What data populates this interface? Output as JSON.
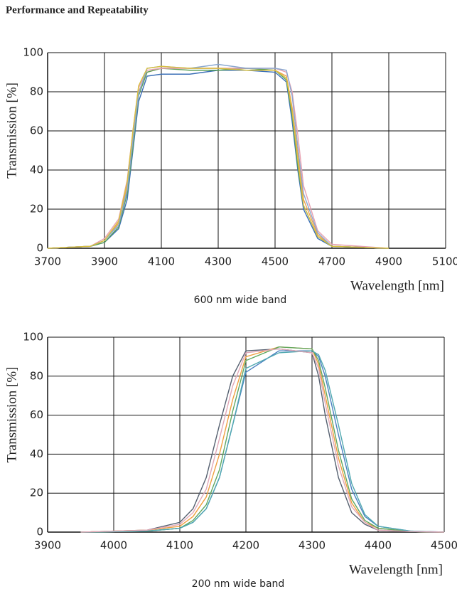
{
  "title": "Performance and Repeatability",
  "chart_data": [
    {
      "type": "line",
      "caption": "600 nm wide band",
      "xlabel": "Wavelength [nm]",
      "ylabel": "Transmission [%]",
      "xlim": [
        3700,
        5100
      ],
      "xticks": [
        3700,
        3900,
        4100,
        4300,
        4500,
        4700,
        4900,
        5100
      ],
      "ylim": [
        0,
        100
      ],
      "yticks": [
        0,
        20,
        40,
        60,
        80,
        100
      ],
      "grid": true,
      "x": [
        3700,
        3850,
        3900,
        3950,
        3980,
        4000,
        4020,
        4050,
        4100,
        4200,
        4300,
        4400,
        4500,
        4540,
        4560,
        4580,
        4600,
        4650,
        4700,
        4900
      ],
      "series": [
        {
          "color": "#3b6fb6",
          "values": [
            0,
            1,
            3,
            10,
            25,
            50,
            75,
            88,
            89,
            89,
            91,
            91,
            90,
            85,
            65,
            40,
            20,
            5,
            1,
            0
          ]
        },
        {
          "color": "#f0a050",
          "values": [
            0,
            1,
            4,
            13,
            32,
            58,
            80,
            90,
            92,
            92,
            92,
            92,
            91,
            88,
            72,
            48,
            25,
            7,
            1,
            0
          ]
        },
        {
          "color": "#5aa05a",
          "values": [
            0,
            1,
            3,
            11,
            28,
            52,
            78,
            90,
            92,
            91,
            91,
            92,
            91,
            86,
            68,
            42,
            22,
            6,
            1,
            0
          ]
        },
        {
          "color": "#e8a0b0",
          "values": [
            0,
            1,
            5,
            15,
            35,
            60,
            82,
            91,
            92,
            92,
            92,
            92,
            92,
            90,
            80,
            58,
            32,
            9,
            2,
            0
          ]
        },
        {
          "color": "#8aa8d0",
          "values": [
            0,
            1,
            4,
            12,
            30,
            55,
            79,
            92,
            93,
            92,
            94,
            92,
            92,
            91,
            78,
            52,
            28,
            8,
            1,
            0
          ]
        },
        {
          "color": "#d8c040",
          "values": [
            0,
            1,
            4,
            14,
            34,
            60,
            83,
            92,
            93,
            92,
            92,
            91,
            91,
            87,
            70,
            45,
            22,
            6,
            1,
            0
          ]
        }
      ]
    },
    {
      "type": "line",
      "caption": "200 nm wide band",
      "xlabel": "Wavelength [nm]",
      "ylabel": "Transmission [%]",
      "xlim": [
        3900,
        4500
      ],
      "xticks": [
        3900,
        4000,
        4100,
        4200,
        4300,
        4400,
        4500
      ],
      "ylim": [
        0,
        100
      ],
      "yticks": [
        0,
        20,
        40,
        60,
        80,
        100
      ],
      "grid": true,
      "x": [
        3950,
        4050,
        4100,
        4120,
        4140,
        4160,
        4180,
        4200,
        4250,
        4300,
        4310,
        4320,
        4340,
        4360,
        4380,
        4400,
        4450,
        4500
      ],
      "series": [
        {
          "color": "#4a80c0",
          "values": [
            0,
            0.5,
            2,
            5,
            12,
            28,
            55,
            82,
            93,
            93,
            90,
            80,
            50,
            22,
            8,
            3,
            0.5,
            0
          ]
        },
        {
          "color": "#556070",
          "values": [
            0,
            1,
            5,
            12,
            28,
            55,
            80,
            93,
            94,
            92,
            80,
            60,
            28,
            10,
            4,
            1,
            0.3,
            0
          ]
        },
        {
          "color": "#f0a040",
          "values": [
            0,
            1,
            3,
            8,
            18,
            40,
            68,
            90,
            95,
            94,
            86,
            70,
            38,
            15,
            5,
            2,
            0.3,
            0
          ]
        },
        {
          "color": "#60a860",
          "values": [
            0,
            0.5,
            2,
            6,
            14,
            32,
            62,
            88,
            95,
            94,
            88,
            74,
            42,
            17,
            6,
            2,
            0.3,
            0
          ]
        },
        {
          "color": "#50a8b0",
          "values": [
            0,
            0.5,
            2,
            5,
            12,
            28,
            55,
            84,
            92,
            93,
            91,
            83,
            55,
            25,
            9,
            3,
            0.5,
            0
          ]
        },
        {
          "color": "#e0a8b8",
          "values": [
            0,
            1,
            4,
            10,
            22,
            48,
            75,
            92,
            94,
            92,
            84,
            66,
            34,
            13,
            5,
            1,
            0.3,
            0
          ]
        }
      ]
    }
  ]
}
